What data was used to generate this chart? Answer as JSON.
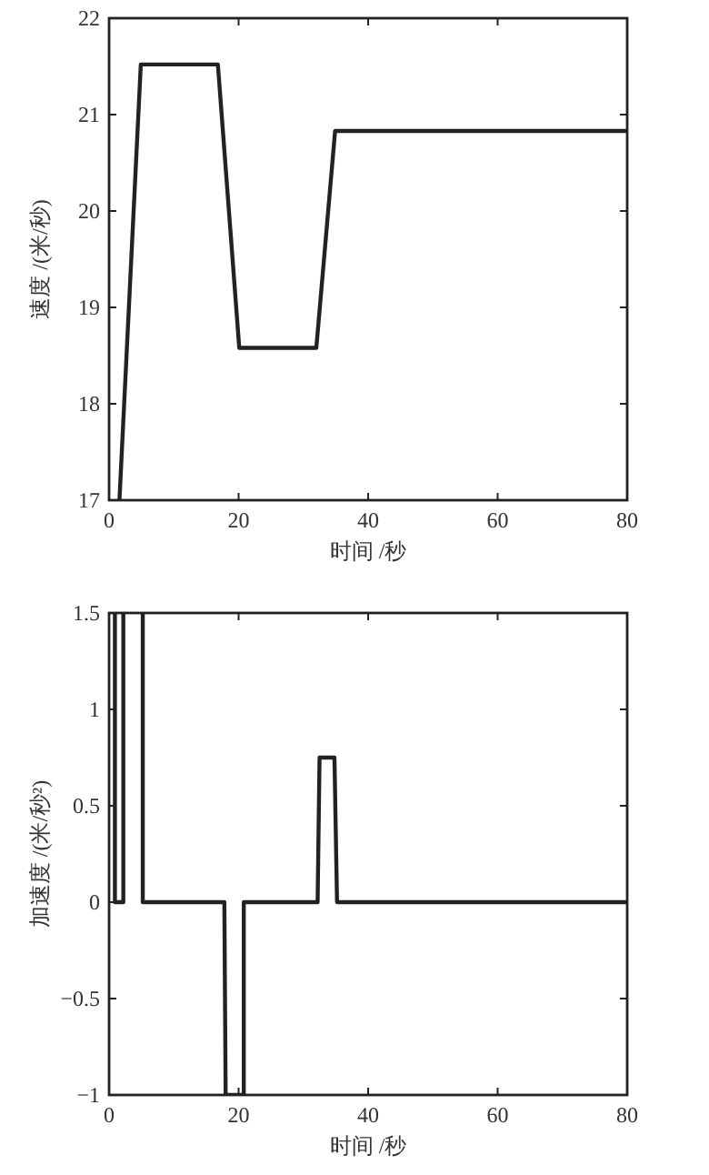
{
  "chart_data": [
    {
      "type": "line",
      "xlabel": "时间 /秒",
      "ylabel": "速度 /(米/秒)",
      "x": [
        1.6,
        4.9,
        16.8,
        20.1,
        32.0,
        34.9,
        80
      ],
      "values": [
        17,
        21.52,
        21.52,
        18.58,
        18.58,
        20.83,
        20.83
      ],
      "color": "#222222",
      "xlim": [
        0,
        80
      ],
      "ylim": [
        17,
        22
      ],
      "xticks": [
        0,
        20,
        40,
        60,
        80
      ],
      "yticks": [
        17,
        18,
        19,
        20,
        21,
        22
      ],
      "grid": false,
      "marker": "none",
      "line_style": "solid"
    },
    {
      "type": "line",
      "xlabel": "时间 /秒",
      "ylabel": "加速度 /(米/秒²)",
      "x": [
        0.9,
        0.9,
        2.2,
        2.2,
        3.7,
        5.2,
        5.2,
        17.8,
        18.0,
        20.8,
        20.8,
        32.2,
        32.5,
        34.8,
        35.2,
        80
      ],
      "values": [
        1.5,
        0,
        0,
        1.5,
        null,
        1.5,
        0,
        0,
        -1,
        -1,
        0,
        0,
        0.75,
        0.75,
        0,
        0
      ],
      "color": "#222222",
      "xlim": [
        0,
        80
      ],
      "ylim": [
        -1,
        1.5
      ],
      "xticks": [
        0,
        20,
        40,
        60,
        80
      ],
      "yticks": [
        {
          "value": -1,
          "label": "−1"
        },
        {
          "value": -0.5,
          "label": "−0.5"
        },
        0,
        0.5,
        1,
        1.5
      ],
      "grid": false,
      "marker": "none",
      "line_style": "solid"
    }
  ]
}
